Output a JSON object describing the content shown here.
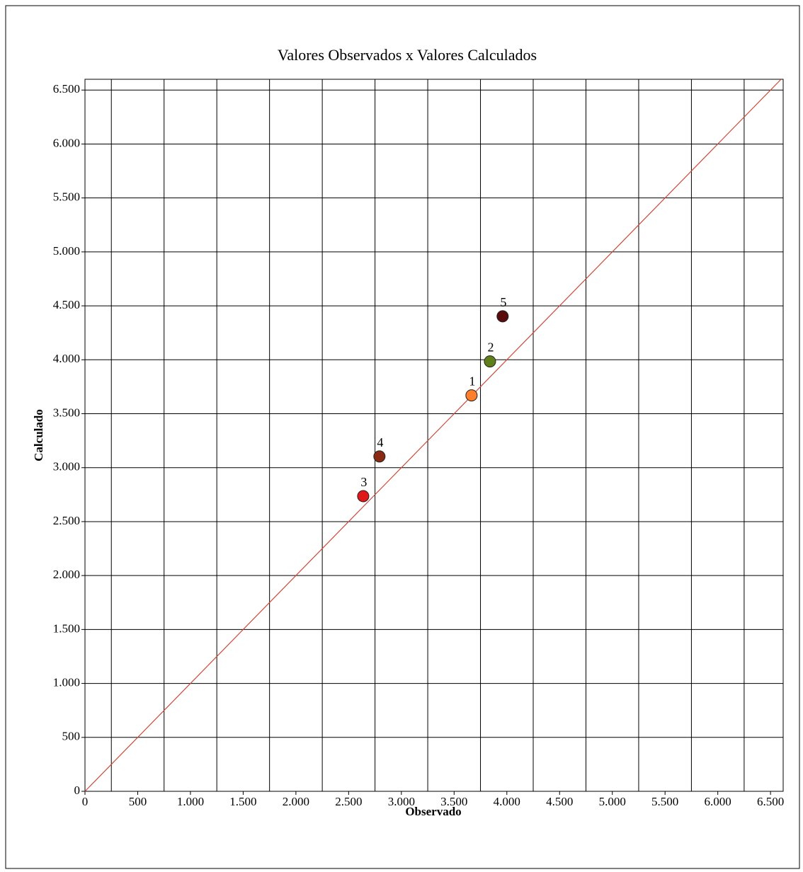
{
  "chart_data": {
    "type": "scatter",
    "title": "Valores Observados x Valores Calculados",
    "x_label": "Observado",
    "y_label": "Calculado",
    "x": [
      3665,
      3840,
      2638,
      2792,
      3960
    ],
    "values": [
      3670,
      3985,
      2736,
      3104,
      4403
    ],
    "point_labels": [
      "1",
      "2",
      "3",
      "4",
      "5"
    ],
    "colors": [
      "#ff7f2a",
      "#5f7f1a",
      "#e01818",
      "#8a2a12",
      "#5a0c0c"
    ],
    "xlim": [
      0,
      6620
    ],
    "ylim": [
      0,
      6600
    ],
    "xticks": [
      0,
      500,
      {
        "value": 1000,
        "label": "1.000"
      },
      {
        "value": 1500,
        "label": "1.500"
      },
      {
        "value": 2000,
        "label": "2.000"
      },
      {
        "value": 2500,
        "label": "2.500"
      },
      {
        "value": 3000,
        "label": "3.000"
      },
      {
        "value": 3500,
        "label": "3.500"
      },
      {
        "value": 4000,
        "label": "4.000"
      },
      {
        "value": 4500,
        "label": "4.500"
      },
      {
        "value": 5000,
        "label": "5.000"
      },
      {
        "value": 5500,
        "label": "5.500"
      },
      {
        "value": 6000,
        "label": "6.000"
      },
      {
        "value": 6500,
        "label": "6.500"
      }
    ],
    "yticks": [
      0,
      500,
      {
        "value": 1000,
        "label": "1.000"
      },
      {
        "value": 1500,
        "label": "1.500"
      },
      {
        "value": 2000,
        "label": "2.000"
      },
      {
        "value": 2500,
        "label": "2.500"
      },
      {
        "value": 3000,
        "label": "3.000"
      },
      {
        "value": 3500,
        "label": "3.500"
      },
      {
        "value": 4000,
        "label": "4.000"
      },
      {
        "value": 4500,
        "label": "4.500"
      },
      {
        "value": 5000,
        "label": "5.000"
      },
      {
        "value": 5500,
        "label": "5.500"
      },
      {
        "value": 6000,
        "label": "6.000"
      },
      {
        "value": 6500,
        "label": "6.500"
      }
    ],
    "x_grid_lines": [
      250,
      750,
      1250,
      1750,
      2250,
      2750,
      3250,
      3750,
      4250,
      4750,
      5250,
      5750,
      6250
    ],
    "grid": true,
    "identity_line": true,
    "identity_color": "#cc4a3a"
  }
}
